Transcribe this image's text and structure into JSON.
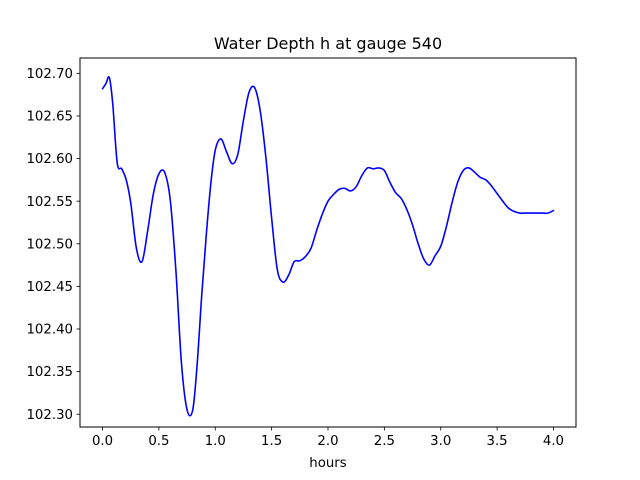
{
  "chart_data": {
    "type": "line",
    "title": "Water Depth h at gauge 540",
    "xlabel": "hours",
    "ylabel": "",
    "xlim": [
      -0.2,
      4.2
    ],
    "ylim": [
      102.285,
      102.718
    ],
    "x_ticks": [
      0.0,
      0.5,
      1.0,
      1.5,
      2.0,
      2.5,
      3.0,
      3.5,
      4.0
    ],
    "x_tick_labels": [
      "0.0",
      "0.5",
      "1.0",
      "1.5",
      "2.0",
      "2.5",
      "3.0",
      "3.5",
      "4.0"
    ],
    "y_ticks": [
      102.3,
      102.35,
      102.4,
      102.45,
      102.5,
      102.55,
      102.6,
      102.65,
      102.7
    ],
    "y_tick_labels": [
      "102.30",
      "102.35",
      "102.40",
      "102.45",
      "102.50",
      "102.55",
      "102.60",
      "102.65",
      "102.70"
    ],
    "grid": false,
    "series": [
      {
        "color": "#0000ff",
        "x": [
          0.0,
          0.03,
          0.06,
          0.09,
          0.13,
          0.17,
          0.21,
          0.25,
          0.3,
          0.35,
          0.4,
          0.45,
          0.5,
          0.55,
          0.6,
          0.65,
          0.7,
          0.75,
          0.8,
          0.84,
          0.88,
          0.92,
          0.96,
          1.0,
          1.05,
          1.1,
          1.15,
          1.2,
          1.25,
          1.3,
          1.35,
          1.4,
          1.45,
          1.5,
          1.55,
          1.6,
          1.65,
          1.7,
          1.75,
          1.8,
          1.85,
          1.9,
          1.95,
          2.0,
          2.05,
          2.1,
          2.15,
          2.2,
          2.25,
          2.3,
          2.35,
          2.4,
          2.45,
          2.5,
          2.55,
          2.6,
          2.65,
          2.7,
          2.75,
          2.8,
          2.85,
          2.9,
          2.95,
          3.0,
          3.05,
          3.1,
          3.15,
          3.2,
          3.25,
          3.3,
          3.35,
          3.4,
          3.45,
          3.5,
          3.55,
          3.6,
          3.65,
          3.7,
          3.75,
          3.8,
          3.85,
          3.9,
          3.95,
          4.0
        ],
        "y": [
          102.682,
          102.688,
          102.695,
          102.665,
          102.595,
          102.588,
          102.575,
          102.548,
          102.495,
          102.479,
          102.515,
          102.558,
          102.582,
          102.584,
          102.552,
          102.47,
          102.36,
          102.305,
          102.305,
          102.36,
          102.44,
          102.51,
          102.57,
          102.61,
          102.623,
          102.608,
          102.594,
          102.605,
          102.645,
          102.678,
          102.683,
          102.655,
          102.6,
          102.53,
          102.47,
          102.455,
          102.463,
          102.479,
          102.48,
          102.485,
          102.495,
          102.516,
          102.535,
          102.55,
          102.558,
          102.564,
          102.565,
          102.562,
          102.567,
          102.58,
          102.589,
          102.588,
          102.589,
          102.586,
          102.572,
          102.56,
          102.553,
          102.54,
          102.522,
          102.5,
          102.482,
          102.475,
          102.486,
          102.497,
          102.52,
          102.548,
          102.572,
          102.586,
          102.589,
          102.584,
          102.578,
          102.575,
          102.568,
          102.559,
          102.55,
          102.542,
          102.538,
          102.536,
          102.536,
          102.536,
          102.536,
          102.536,
          102.536,
          102.539
        ]
      }
    ]
  }
}
